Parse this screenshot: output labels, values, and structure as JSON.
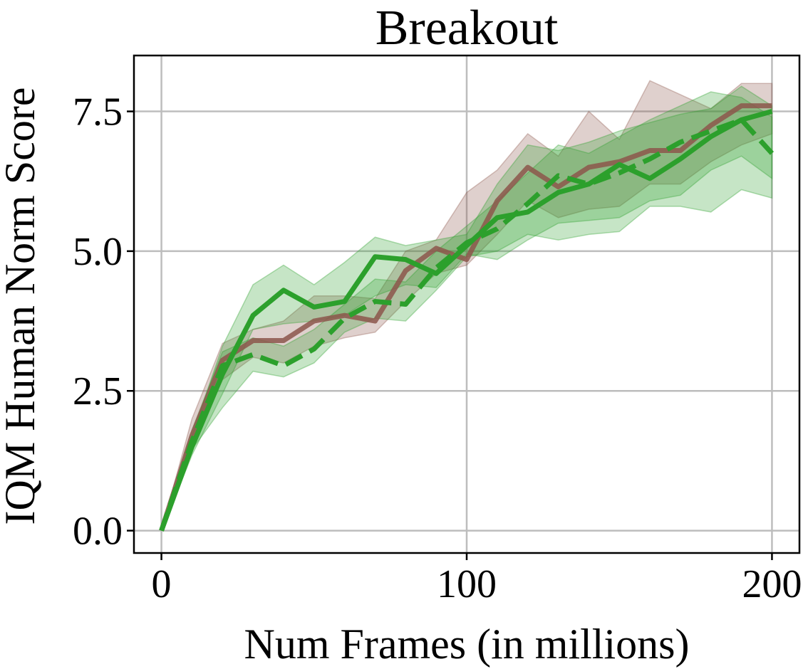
{
  "chart_data": {
    "type": "line",
    "title": "Breakout",
    "xlabel": "Num Frames (in millions)",
    "ylabel": "IQM Human Norm Score",
    "xlim": [
      -9,
      209
    ],
    "ylim": [
      -0.4,
      8.5
    ],
    "xticks": [
      0,
      100,
      200
    ],
    "xtick_labels": [
      "0",
      "100",
      "200"
    ],
    "yticks": [
      0.0,
      2.5,
      5.0,
      7.5
    ],
    "ytick_labels": [
      "0.0",
      "2.5",
      "5.0",
      "7.5"
    ],
    "grid": true,
    "legend": "none",
    "x": [
      0,
      10,
      20,
      30,
      40,
      50,
      60,
      70,
      80,
      90,
      100,
      110,
      120,
      130,
      140,
      150,
      160,
      170,
      180,
      190,
      200
    ],
    "series": [
      {
        "color": "#8c564b",
        "line_style": "solid",
        "values": [
          0.0,
          1.7,
          3.05,
          3.4,
          3.4,
          3.75,
          3.85,
          3.75,
          4.65,
          5.05,
          4.85,
          5.9,
          6.5,
          6.15,
          6.5,
          6.6,
          6.8,
          6.8,
          7.25,
          7.6,
          7.6
        ],
        "lower": [
          0.0,
          1.5,
          2.7,
          3.1,
          3.0,
          3.3,
          3.45,
          3.55,
          4.1,
          4.6,
          4.75,
          5.3,
          5.9,
          5.6,
          5.75,
          5.8,
          6.2,
          6.2,
          6.6,
          6.9,
          7.1
        ],
        "upper": [
          0.0,
          2.0,
          3.35,
          3.6,
          3.75,
          4.2,
          4.2,
          4.15,
          5.0,
          5.2,
          6.05,
          6.45,
          7.1,
          6.7,
          7.5,
          7.0,
          8.05,
          7.8,
          7.55,
          8.0,
          8.0
        ]
      },
      {
        "color": "#2ca02c",
        "line_style": "solid",
        "values": [
          0.0,
          1.5,
          2.8,
          3.85,
          4.3,
          4.0,
          4.1,
          4.9,
          4.85,
          4.6,
          5.1,
          5.6,
          5.7,
          6.05,
          6.2,
          6.55,
          6.3,
          6.65,
          7.05,
          7.35,
          7.5
        ],
        "lower": [
          0.0,
          1.35,
          2.45,
          3.6,
          3.7,
          3.75,
          3.85,
          4.2,
          4.4,
          4.35,
          4.95,
          4.85,
          5.2,
          5.5,
          5.55,
          5.6,
          5.9,
          6.0,
          6.45,
          6.7,
          6.3
        ],
        "upper": [
          0.0,
          1.7,
          3.3,
          4.4,
          4.75,
          4.4,
          4.8,
          5.25,
          5.1,
          5.2,
          5.3,
          6.2,
          6.9,
          6.8,
          6.95,
          7.15,
          7.3,
          7.45,
          7.55,
          7.95,
          7.6
        ]
      },
      {
        "color": "#2ca02c",
        "line_style": "dashed",
        "values": [
          0.0,
          1.6,
          2.95,
          3.15,
          2.95,
          3.25,
          3.8,
          4.1,
          4.05,
          4.7,
          5.15,
          5.4,
          5.85,
          6.35,
          6.2,
          6.4,
          6.65,
          6.95,
          7.15,
          7.35,
          6.75
        ],
        "lower": [
          0.0,
          1.45,
          2.2,
          2.85,
          2.75,
          3.0,
          3.55,
          3.8,
          3.75,
          4.3,
          4.9,
          5.0,
          5.3,
          5.2,
          5.3,
          5.35,
          5.8,
          5.8,
          5.7,
          6.1,
          5.95
        ],
        "upper": [
          0.0,
          1.8,
          3.2,
          3.45,
          3.3,
          3.6,
          4.05,
          4.5,
          4.45,
          5.0,
          5.45,
          5.9,
          6.4,
          6.9,
          6.75,
          7.05,
          7.35,
          7.6,
          7.85,
          7.75,
          7.4
        ]
      }
    ]
  }
}
